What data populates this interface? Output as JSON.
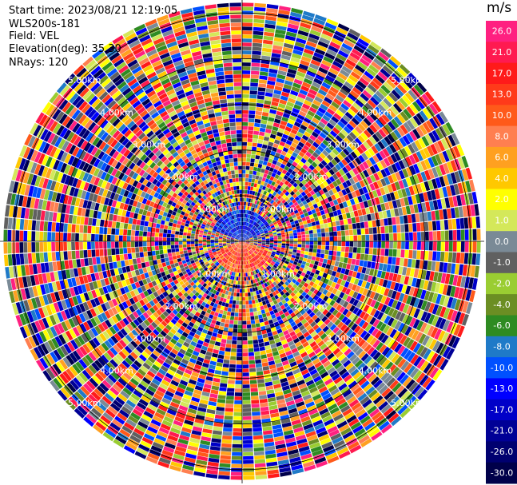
{
  "info": {
    "start_time": "Start time: 2023/08/21 12:19:05",
    "instrument": "WLS200s-181",
    "field": "Field: VEL",
    "elevation": "Elevation(deg): 35.30",
    "nrays": "NRays: 120"
  },
  "colorbar": {
    "unit": "m/s",
    "ticks": [
      "26.0",
      "21.0",
      "17.0",
      "13.0",
      "10.0",
      "8.0",
      "6.0",
      "4.0",
      "2.0",
      "1.0",
      "0.0",
      "-1.0",
      "-2.0",
      "-4.0",
      "-6.0",
      "-8.0",
      "-10.0",
      "-13.0",
      "-17.0",
      "-21.0",
      "-26.0",
      "-30.0"
    ],
    "colors": [
      "#ff2080",
      "#ff1a50",
      "#ff1a1a",
      "#ff3a1a",
      "#ff5a1a",
      "#ff7f50",
      "#ffa020",
      "#ffc800",
      "#ffff00",
      "#d4e85a",
      "#7a8a96",
      "#606060",
      "#9acd32",
      "#6b8e23",
      "#2e8b22",
      "#1f7ac8",
      "#0050ff",
      "#0000ff",
      "#0000c8",
      "#000096",
      "#000070",
      "#00004a"
    ]
  },
  "chart_data": {
    "type": "heatmap",
    "subtype": "ppi-polar",
    "field": "VEL",
    "nrays": 120,
    "ring_labels": [
      "1.00km",
      "2.00km",
      "3.00km",
      "4.00km",
      "5.00km"
    ],
    "ring_ranges_km": [
      1,
      2,
      3,
      4,
      5
    ],
    "max_range_km": 5.3,
    "center_pattern": {
      "north": "orange-red",
      "south": "blue",
      "west": "mixed-colors",
      "east": "mixed-colors"
    }
  }
}
